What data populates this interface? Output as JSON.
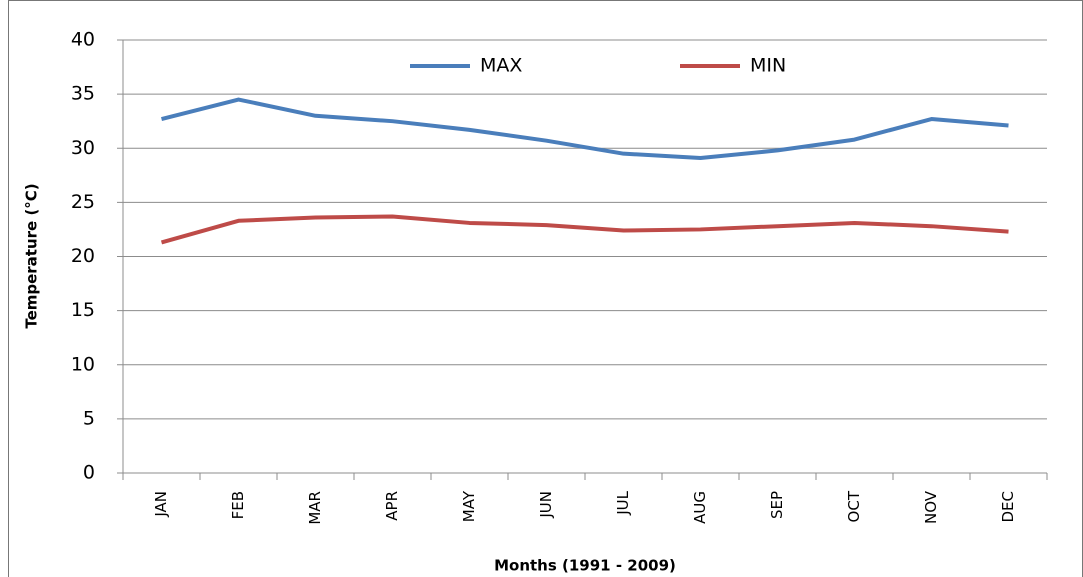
{
  "chart_data": {
    "type": "line",
    "categories": [
      "JAN",
      "FEB",
      "MAR",
      "APR",
      "MAY",
      "JUN",
      "JUL",
      "AUG",
      "SEP",
      "OCT",
      "NOV",
      "DEC"
    ],
    "series": [
      {
        "name": "MAX",
        "color": "#4a7ebb",
        "values": [
          32.7,
          34.5,
          33.0,
          32.5,
          31.7,
          30.7,
          29.5,
          29.1,
          29.8,
          30.8,
          32.7,
          32.1
        ]
      },
      {
        "name": "MIN",
        "color": "#be4b48",
        "values": [
          21.3,
          23.3,
          23.6,
          23.7,
          23.1,
          22.9,
          22.4,
          22.5,
          22.8,
          23.1,
          22.8,
          22.3
        ]
      }
    ],
    "xlabel": "Months (1991 - 2009)",
    "ylabel": "Temperature (°C)",
    "ylim": [
      0,
      40
    ],
    "yticks": [
      0,
      5,
      10,
      15,
      20,
      25,
      30,
      35,
      40
    ],
    "grid": true,
    "legend": "top"
  }
}
